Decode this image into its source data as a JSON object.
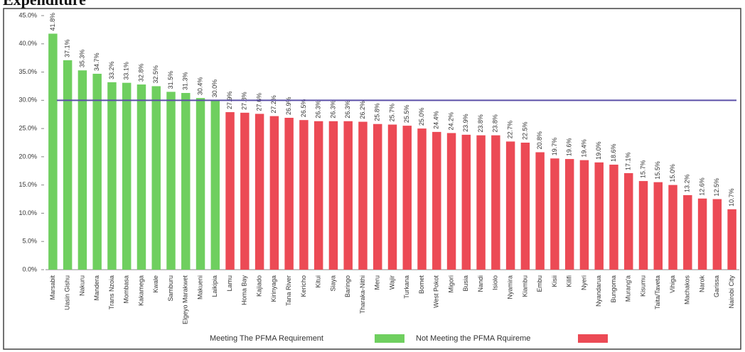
{
  "chart_data": {
    "type": "bar",
    "title": "Expenditure",
    "categories": [
      "Marsabit",
      "Uasin Gishu",
      "Nakuru",
      "Mandera",
      "Trans Nzoia",
      "Mombasa",
      "Kakamega",
      "Kwale",
      "Samburu",
      "Elgeyo Marakwet",
      "Makueni",
      "Laikipia",
      "Lamu",
      "Homa Bay",
      "Kajiado",
      "Kirinyaga",
      "Tana River",
      "Kericho",
      "Kitui",
      "Siaya",
      "Baringo",
      "Tharaka-Nithi",
      "Meru",
      "Wajir",
      "Turkana",
      "Bomet",
      "West Pokot",
      "Migori",
      "Busia",
      "Nandi",
      "Isiolo",
      "Nyamira",
      "Kiambu",
      "Embu",
      "Kisii",
      "Kilifi",
      "Nyeri",
      "Nyandarua",
      "Bungoma",
      "Murang'a",
      "Kisumu",
      "Taita/Taveta",
      "Vihiga",
      "Machakos",
      "Narok",
      "Garissa",
      "Nairobi City"
    ],
    "series": [
      {
        "name": "Meeting The PFMA Requirement",
        "color": "#6fcf5f",
        "values": [
          41.8,
          37.1,
          35.3,
          34.7,
          33.2,
          33.1,
          32.8,
          32.5,
          31.5,
          31.3,
          30.4,
          30.0,
          null,
          null,
          null,
          null,
          null,
          null,
          null,
          null,
          null,
          null,
          null,
          null,
          null,
          null,
          null,
          null,
          null,
          null,
          null,
          null,
          null,
          null,
          null,
          null,
          null,
          null,
          null,
          null,
          null,
          null,
          null,
          null,
          null,
          null,
          null
        ],
        "value_labels": [
          "41.8%",
          "37.1%",
          "35.3%",
          "34.7%",
          "33.2%",
          "33.1%",
          "32.8%",
          "32.5%",
          "31.5%",
          "31.3%",
          "30.4%",
          "30.0%",
          null,
          null,
          null,
          null,
          null,
          null,
          null,
          null,
          null,
          null,
          null,
          null,
          null,
          null,
          null,
          null,
          null,
          null,
          null,
          null,
          null,
          null,
          null,
          null,
          null,
          null,
          null,
          null,
          null,
          null,
          null,
          null,
          null,
          null,
          null
        ]
      },
      {
        "name": "Not Meeting the PFMA Rquireme",
        "color": "#ec4a55",
        "values": [
          null,
          null,
          null,
          null,
          null,
          null,
          null,
          null,
          null,
          null,
          null,
          null,
          27.9,
          27.8,
          27.6,
          27.2,
          26.9,
          26.5,
          26.3,
          26.3,
          26.3,
          26.2,
          25.8,
          25.7,
          25.5,
          25.0,
          24.4,
          24.2,
          23.9,
          23.8,
          23.8,
          22.7,
          22.5,
          20.8,
          19.7,
          19.6,
          19.4,
          19.0,
          18.6,
          17.1,
          15.7,
          15.5,
          15.0,
          13.2,
          12.6,
          12.5,
          10.7
        ],
        "value_labels": [
          null,
          null,
          null,
          null,
          null,
          null,
          null,
          null,
          null,
          null,
          null,
          null,
          "27.9%",
          "27.8%",
          "27.6%",
          "27.2%",
          "26.9%",
          "26.5%",
          "26.3%",
          "26.3%",
          "26.3%",
          "26.2%",
          "25.8%",
          "25.7%",
          "25.5%",
          "25.0%",
          "24.4%",
          "24.2%",
          "23.9%",
          "23.8%",
          "23.8%",
          "22.7%",
          "22.5%",
          "20.8%",
          "19.7%",
          "19.6%",
          "19.4%",
          "19.0%",
          "18.6%",
          "17.1%",
          "15.7%",
          "15.5%",
          "15.0%",
          "13.2%",
          "12.6%",
          "12.5%",
          "10.7%"
        ]
      }
    ],
    "reference_line": 30,
    "ylim": [
      0,
      45
    ],
    "yticks": [
      {
        "value": 0,
        "label": "0.0%"
      },
      {
        "value": 5,
        "label": "5.0%"
      },
      {
        "value": 10,
        "label": "10.0%"
      },
      {
        "value": 15,
        "label": "15.0%"
      },
      {
        "value": 20,
        "label": "20.0%"
      },
      {
        "value": 25,
        "label": "25.0%"
      },
      {
        "value": 30,
        "label": "30.0%"
      },
      {
        "value": 35,
        "label": "35.0%"
      },
      {
        "value": 40,
        "label": "40.0%"
      },
      {
        "value": 45,
        "label": "45.0%"
      }
    ],
    "grid": false
  }
}
